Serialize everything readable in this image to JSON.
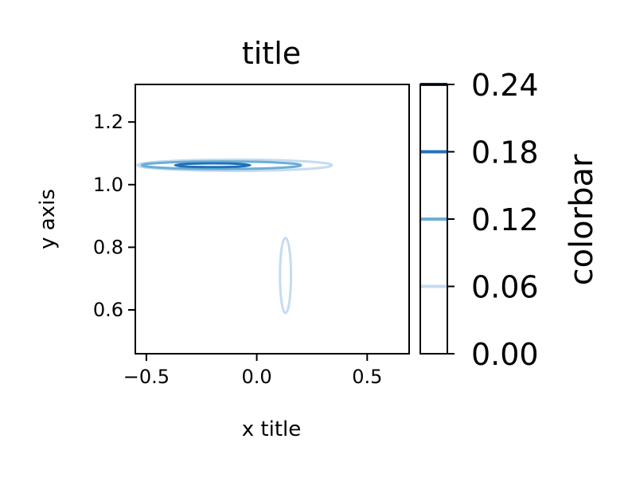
{
  "chart_data": {
    "type": "contour",
    "title": "title",
    "xlabel": "x title",
    "ylabel": "y axis",
    "xlim": [
      -0.55,
      0.69
    ],
    "ylim": [
      0.46,
      1.32
    ],
    "xticks": [
      -0.5,
      0.0,
      0.5
    ],
    "xtick_labels": [
      "−0.5",
      "0.0",
      "0.5"
    ],
    "yticks": [
      0.6,
      0.8,
      1.0,
      1.2
    ],
    "ytick_labels": [
      "0.6",
      "0.8",
      "1.0",
      "1.2"
    ],
    "grid": false,
    "colormap": "Blues",
    "contour_levels": [
      {
        "level": 0.06,
        "color": "#c6dbef",
        "blobs": [
          {
            "cx": -0.1,
            "cy": 1.062,
            "rx": 0.44,
            "ry": 0.018
          },
          {
            "cx": 0.13,
            "cy": 0.71,
            "rx": 0.025,
            "ry": 0.12
          }
        ]
      },
      {
        "level": 0.12,
        "color": "#6baed6",
        "blobs": [
          {
            "cx": -0.16,
            "cy": 1.062,
            "rx": 0.36,
            "ry": 0.012
          }
        ]
      },
      {
        "level": 0.18,
        "color": "#2171b5",
        "blobs": [
          {
            "cx": -0.2,
            "cy": 1.062,
            "rx": 0.17,
            "ry": 0.006
          }
        ]
      }
    ],
    "colorbar": {
      "label": "colorbar",
      "limits": [
        0.0,
        0.24
      ],
      "ticks": [
        0.0,
        0.06,
        0.12,
        0.18,
        0.24
      ],
      "tick_labels": [
        "0.00",
        "0.06",
        "0.12",
        "0.18",
        "0.24"
      ],
      "lines": [
        {
          "value": 0.06,
          "color": "#c6dbef"
        },
        {
          "value": 0.12,
          "color": "#6baed6"
        },
        {
          "value": 0.18,
          "color": "#2171b5"
        },
        {
          "value": 0.24,
          "color": "#08306b"
        }
      ]
    }
  }
}
